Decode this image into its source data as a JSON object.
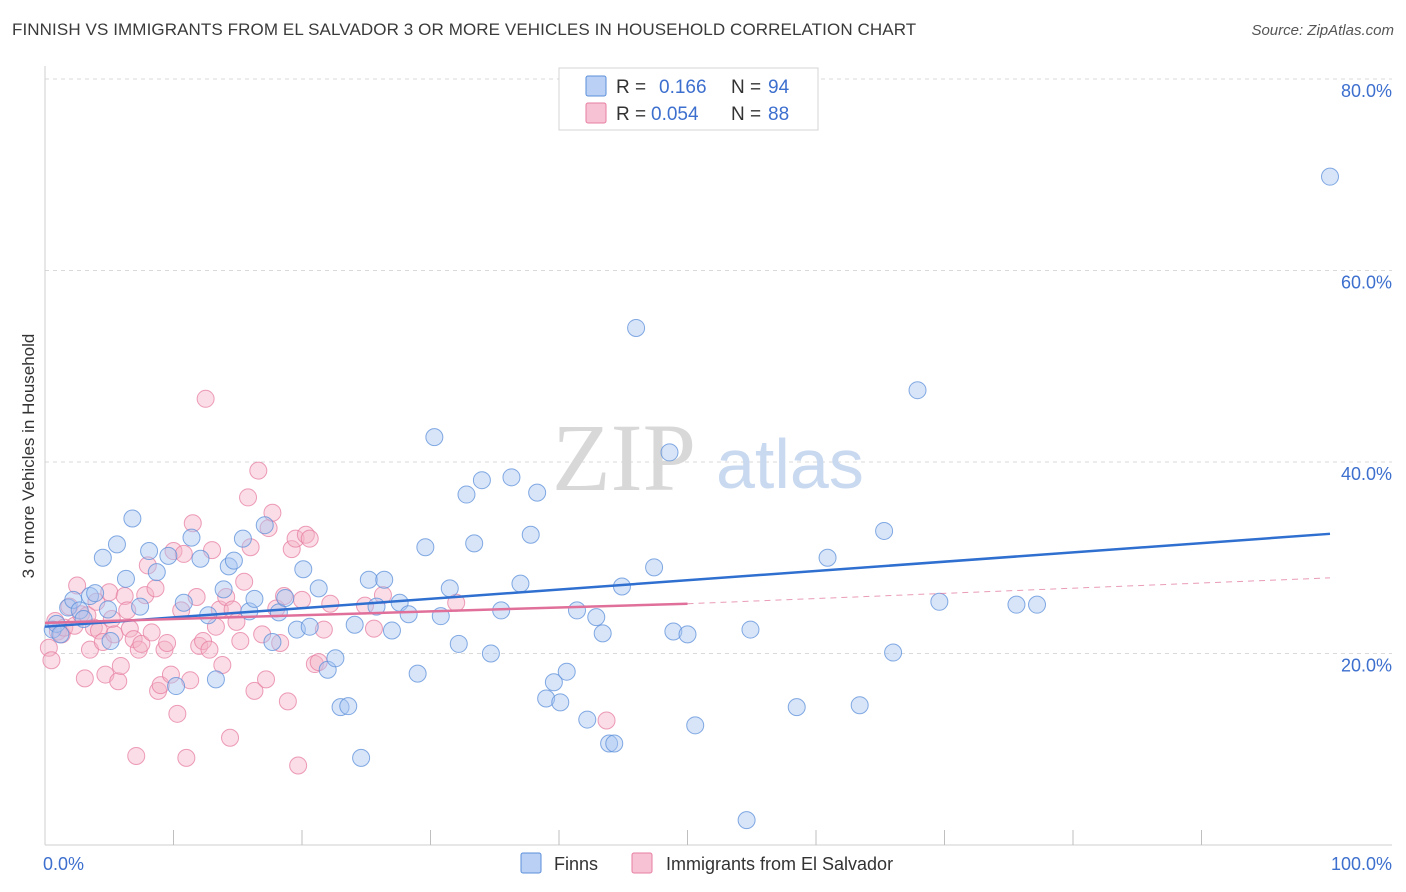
{
  "header": {
    "title": "FINNISH VS IMMIGRANTS FROM EL SALVADOR 3 OR MORE VEHICLES IN HOUSEHOLD CORRELATION CHART",
    "source": "Source: ZipAtlas.com"
  },
  "watermark": {
    "zip": "ZIP",
    "atlas": "atlas"
  },
  "legend": {
    "rows": [
      {
        "r_label": "R =",
        "r_value": "0.166",
        "n_label": "N =",
        "n_value": "94",
        "color": "#a9c6f2"
      },
      {
        "r_label": "R =",
        "r_value": "0.054",
        "n_label": "N =",
        "n_value": "88",
        "color": "#f5b3c8"
      }
    ]
  },
  "bottom_legend": [
    {
      "label": "Finns",
      "color": "#a9c6f2"
    },
    {
      "label": "Immigrants from El Salvador",
      "color": "#f5b3c8"
    }
  ],
  "colors": {
    "finns_fill": "#a9c6f2",
    "finns_stroke": "#5b8fd9",
    "finns_line": "#2f6fd0",
    "salv_fill": "#f5b3c8",
    "salv_stroke": "#e77ea0",
    "salv_line": "#e0709a",
    "grid": "#d9d9d9",
    "tick_text": "#3d6fce"
  },
  "chart_data": {
    "type": "scatter",
    "title": "FINNISH VS IMMIGRANTS FROM EL SALVADOR 3 OR MORE VEHICLES IN HOUSEHOLD CORRELATION CHART",
    "xlabel": "",
    "ylabel": "3 or more Vehicles in Household",
    "xlim": [
      0,
      100
    ],
    "ylim": [
      0,
      80
    ],
    "x_tick_labels": [
      "0.0%",
      "100.0%"
    ],
    "y_ticks": [
      20,
      40,
      60,
      80
    ],
    "y_tick_labels": [
      "20.0%",
      "40.0%",
      "60.0%",
      "80.0%"
    ],
    "grid": "horizontal dashed",
    "legend_position": "top-center",
    "series": [
      {
        "name": "Finns",
        "r": 0.166,
        "n": 94,
        "trend": {
          "x": [
            0,
            100
          ],
          "y": [
            22.8,
            32.5
          ],
          "style": "solid"
        },
        "points": [
          [
            0.6,
            22.5
          ],
          [
            0.9,
            23.1
          ],
          [
            1.2,
            22.0
          ],
          [
            1.8,
            24.8
          ],
          [
            2.2,
            25.6
          ],
          [
            2.7,
            24.5
          ],
          [
            3.0,
            23.6
          ],
          [
            3.5,
            26.0
          ],
          [
            3.9,
            26.3
          ],
          [
            4.5,
            30.0
          ],
          [
            4.9,
            24.6
          ],
          [
            5.1,
            21.3
          ],
          [
            5.6,
            31.4
          ],
          [
            6.3,
            27.8
          ],
          [
            6.8,
            34.1
          ],
          [
            7.4,
            24.9
          ],
          [
            8.1,
            30.7
          ],
          [
            8.7,
            28.5
          ],
          [
            9.6,
            30.2
          ],
          [
            10.2,
            16.6
          ],
          [
            10.8,
            25.3
          ],
          [
            11.4,
            32.1
          ],
          [
            12.1,
            29.9
          ],
          [
            12.7,
            24.0
          ],
          [
            13.3,
            17.3
          ],
          [
            13.9,
            26.7
          ],
          [
            14.3,
            29.1
          ],
          [
            14.7,
            29.7
          ],
          [
            15.4,
            32.0
          ],
          [
            15.9,
            24.4
          ],
          [
            16.3,
            25.7
          ],
          [
            17.1,
            33.4
          ],
          [
            17.7,
            21.2
          ],
          [
            18.2,
            24.3
          ],
          [
            18.7,
            25.8
          ],
          [
            19.6,
            22.5
          ],
          [
            20.1,
            28.8
          ],
          [
            20.6,
            22.8
          ],
          [
            21.3,
            26.8
          ],
          [
            22.0,
            18.3
          ],
          [
            22.6,
            19.5
          ],
          [
            23.0,
            14.4
          ],
          [
            23.6,
            14.5
          ],
          [
            24.1,
            23.0
          ],
          [
            24.6,
            9.1
          ],
          [
            25.2,
            27.7
          ],
          [
            25.8,
            24.9
          ],
          [
            26.4,
            27.7
          ],
          [
            27.0,
            22.4
          ],
          [
            27.6,
            25.3
          ],
          [
            28.3,
            24.1
          ],
          [
            29.0,
            17.9
          ],
          [
            29.6,
            31.1
          ],
          [
            30.3,
            42.6
          ],
          [
            30.8,
            23.9
          ],
          [
            31.5,
            26.8
          ],
          [
            32.2,
            21.0
          ],
          [
            32.8,
            36.6
          ],
          [
            33.4,
            31.5
          ],
          [
            34.0,
            38.1
          ],
          [
            34.7,
            20.0
          ],
          [
            35.5,
            24.5
          ],
          [
            36.3,
            38.4
          ],
          [
            37.0,
            27.3
          ],
          [
            37.8,
            32.4
          ],
          [
            38.3,
            36.8
          ],
          [
            39.0,
            15.3
          ],
          [
            39.6,
            17.0
          ],
          [
            40.1,
            14.9
          ],
          [
            40.6,
            18.1
          ],
          [
            41.4,
            24.5
          ],
          [
            42.2,
            13.1
          ],
          [
            42.9,
            23.8
          ],
          [
            43.4,
            22.1
          ],
          [
            43.9,
            10.6
          ],
          [
            44.3,
            10.6
          ],
          [
            44.9,
            27.0
          ],
          [
            46.0,
            54.0
          ],
          [
            47.4,
            29.0
          ],
          [
            48.6,
            41.0
          ],
          [
            48.9,
            22.3
          ],
          [
            50.0,
            22.0
          ],
          [
            50.6,
            12.5
          ],
          [
            54.6,
            2.6
          ],
          [
            54.9,
            22.5
          ],
          [
            58.5,
            14.4
          ],
          [
            60.9,
            30.0
          ],
          [
            63.4,
            14.6
          ],
          [
            65.3,
            32.8
          ],
          [
            66.0,
            20.1
          ],
          [
            67.9,
            47.5
          ],
          [
            69.6,
            25.4
          ],
          [
            75.6,
            25.1
          ],
          [
            77.2,
            25.1
          ],
          [
            100.0,
            69.8
          ]
        ]
      },
      {
        "name": "Immigrants from El Salvador",
        "r": 0.054,
        "n": 88,
        "trend": {
          "x": [
            0,
            50
          ],
          "y": [
            23.2,
            25.2
          ],
          "style": "solid",
          "dashed_extension": {
            "x": [
              50,
              100
            ],
            "y": [
              25.2,
              27.9
            ]
          }
        },
        "points": [
          [
            0.3,
            20.6
          ],
          [
            0.5,
            19.3
          ],
          [
            0.8,
            23.4
          ],
          [
            1.0,
            22.3
          ],
          [
            1.3,
            22.0
          ],
          [
            1.5,
            22.7
          ],
          [
            1.9,
            24.9
          ],
          [
            2.3,
            22.9
          ],
          [
            2.5,
            27.1
          ],
          [
            2.8,
            24.1
          ],
          [
            3.1,
            17.4
          ],
          [
            3.3,
            24.0
          ],
          [
            3.5,
            20.4
          ],
          [
            3.8,
            22.7
          ],
          [
            4.0,
            25.4
          ],
          [
            4.2,
            22.4
          ],
          [
            4.5,
            21.2
          ],
          [
            4.7,
            17.8
          ],
          [
            5.0,
            26.4
          ],
          [
            5.2,
            23.6
          ],
          [
            5.4,
            22.0
          ],
          [
            5.7,
            17.1
          ],
          [
            5.9,
            18.7
          ],
          [
            6.2,
            26.0
          ],
          [
            6.4,
            24.5
          ],
          [
            6.6,
            22.6
          ],
          [
            6.9,
            21.5
          ],
          [
            7.1,
            9.3
          ],
          [
            7.3,
            20.4
          ],
          [
            7.5,
            21.0
          ],
          [
            7.8,
            26.1
          ],
          [
            8.0,
            29.2
          ],
          [
            8.3,
            22.2
          ],
          [
            8.6,
            26.8
          ],
          [
            8.8,
            16.1
          ],
          [
            9.0,
            16.7
          ],
          [
            9.3,
            20.4
          ],
          [
            9.5,
            21.1
          ],
          [
            9.8,
            17.8
          ],
          [
            10.0,
            30.7
          ],
          [
            10.3,
            13.7
          ],
          [
            10.6,
            24.5
          ],
          [
            10.8,
            30.4
          ],
          [
            11.0,
            9.1
          ],
          [
            11.3,
            17.2
          ],
          [
            11.5,
            33.6
          ],
          [
            11.8,
            25.9
          ],
          [
            12.0,
            20.8
          ],
          [
            12.3,
            21.3
          ],
          [
            12.5,
            46.6
          ],
          [
            12.8,
            20.4
          ],
          [
            13.0,
            30.8
          ],
          [
            13.3,
            22.8
          ],
          [
            13.6,
            24.6
          ],
          [
            13.8,
            18.8
          ],
          [
            14.1,
            25.9
          ],
          [
            14.4,
            11.2
          ],
          [
            14.6,
            24.6
          ],
          [
            14.9,
            23.3
          ],
          [
            15.2,
            21.3
          ],
          [
            15.5,
            27.5
          ],
          [
            15.8,
            36.3
          ],
          [
            16.0,
            31.1
          ],
          [
            16.3,
            16.1
          ],
          [
            16.6,
            39.1
          ],
          [
            16.9,
            22.0
          ],
          [
            17.2,
            17.3
          ],
          [
            17.4,
            33.1
          ],
          [
            17.7,
            34.7
          ],
          [
            18.0,
            24.7
          ],
          [
            18.3,
            21.1
          ],
          [
            18.6,
            26.0
          ],
          [
            18.9,
            15.0
          ],
          [
            19.2,
            30.9
          ],
          [
            19.5,
            32.0
          ],
          [
            19.7,
            8.3
          ],
          [
            20.0,
            25.6
          ],
          [
            20.3,
            32.4
          ],
          [
            20.6,
            32.0
          ],
          [
            21.0,
            18.9
          ],
          [
            21.3,
            19.1
          ],
          [
            21.7,
            22.5
          ],
          [
            22.2,
            25.2
          ],
          [
            24.9,
            25.0
          ],
          [
            25.6,
            22.6
          ],
          [
            26.3,
            26.1
          ],
          [
            32.0,
            25.3
          ],
          [
            43.7,
            13.0
          ]
        ]
      }
    ]
  }
}
